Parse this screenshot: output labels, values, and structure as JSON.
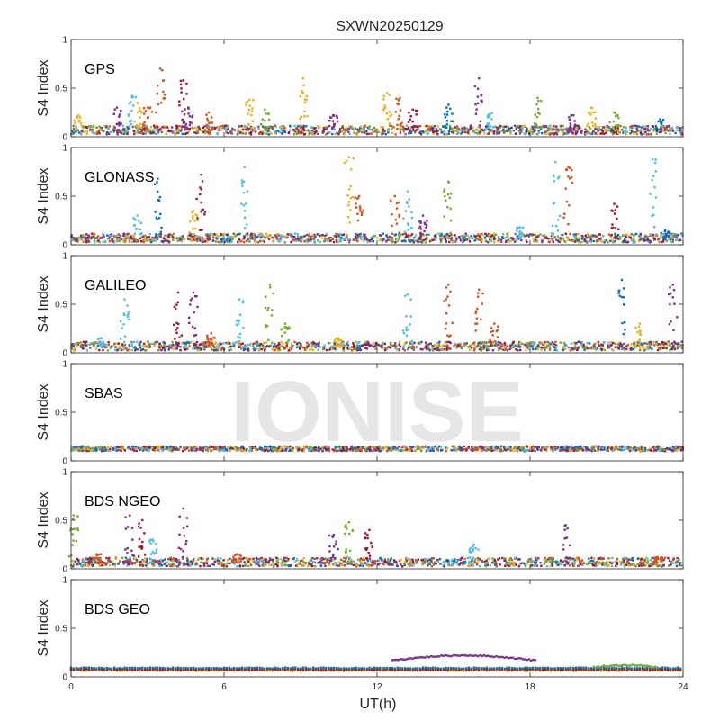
{
  "title": "SXWN20250129",
  "watermark": "IONISE",
  "xlabel": "UT(h)",
  "ylabel": "S4 Index",
  "xticks": [
    "0",
    "6",
    "12",
    "18",
    "24"
  ],
  "yticks": [
    "0",
    "0.5",
    "1"
  ],
  "colors": [
    "#0072BD",
    "#D95319",
    "#EDB120",
    "#7E2F8E",
    "#77AC30",
    "#4DBEEE",
    "#A2142F"
  ],
  "chart_data": [
    {
      "type": "scatter",
      "label": "GPS",
      "xlim": [
        0,
        24
      ],
      "ylim": [
        0,
        1
      ],
      "baseline": 0.06,
      "spikes": [
        {
          "x": 0.3,
          "y": 0.22,
          "c": 2
        },
        {
          "x": 1.8,
          "y": 0.3,
          "c": 3
        },
        {
          "x": 2.4,
          "y": 0.42,
          "c": 5
        },
        {
          "x": 2.6,
          "y": 0.35,
          "c": 2
        },
        {
          "x": 3.0,
          "y": 0.3,
          "c": 1
        },
        {
          "x": 3.5,
          "y": 0.7,
          "c": 1
        },
        {
          "x": 4.4,
          "y": 0.58,
          "c": 6
        },
        {
          "x": 4.6,
          "y": 0.3,
          "c": 3
        },
        {
          "x": 5.4,
          "y": 0.25,
          "c": 1
        },
        {
          "x": 7.0,
          "y": 0.38,
          "c": 2
        },
        {
          "x": 7.6,
          "y": 0.28,
          "c": 4
        },
        {
          "x": 9.1,
          "y": 0.6,
          "c": 2
        },
        {
          "x": 10.3,
          "y": 0.22,
          "c": 3
        },
        {
          "x": 12.4,
          "y": 0.45,
          "c": 2
        },
        {
          "x": 12.9,
          "y": 0.4,
          "c": 1
        },
        {
          "x": 13.4,
          "y": 0.28,
          "c": 6
        },
        {
          "x": 14.8,
          "y": 0.33,
          "c": 0
        },
        {
          "x": 16.0,
          "y": 0.6,
          "c": 3
        },
        {
          "x": 16.5,
          "y": 0.24,
          "c": 5
        },
        {
          "x": 18.3,
          "y": 0.4,
          "c": 4
        },
        {
          "x": 19.7,
          "y": 0.22,
          "c": 3
        },
        {
          "x": 20.4,
          "y": 0.3,
          "c": 2
        },
        {
          "x": 21.3,
          "y": 0.25,
          "c": 4
        },
        {
          "x": 23.1,
          "y": 0.18,
          "c": 0
        }
      ]
    },
    {
      "type": "scatter",
      "label": "GLONASS",
      "xlim": [
        0,
        24
      ],
      "ylim": [
        0,
        1
      ],
      "baseline": 0.06,
      "spikes": [
        {
          "x": 2.6,
          "y": 0.3,
          "c": 5
        },
        {
          "x": 3.4,
          "y": 0.68,
          "c": 0
        },
        {
          "x": 4.8,
          "y": 0.35,
          "c": 2
        },
        {
          "x": 5.1,
          "y": 0.72,
          "c": 6
        },
        {
          "x": 6.8,
          "y": 0.8,
          "c": 5
        },
        {
          "x": 10.9,
          "y": 0.9,
          "c": 2
        },
        {
          "x": 11.3,
          "y": 0.5,
          "c": 1
        },
        {
          "x": 12.7,
          "y": 0.5,
          "c": 1
        },
        {
          "x": 13.2,
          "y": 0.55,
          "c": 5
        },
        {
          "x": 13.8,
          "y": 0.3,
          "c": 3
        },
        {
          "x": 14.8,
          "y": 0.65,
          "c": 4
        },
        {
          "x": 17.6,
          "y": 0.18,
          "c": 5
        },
        {
          "x": 19.0,
          "y": 0.85,
          "c": 5
        },
        {
          "x": 19.5,
          "y": 0.8,
          "c": 1
        },
        {
          "x": 21.3,
          "y": 0.42,
          "c": 6
        },
        {
          "x": 22.8,
          "y": 0.88,
          "c": 5
        },
        {
          "x": 23.3,
          "y": 0.15,
          "c": 0
        }
      ]
    },
    {
      "type": "scatter",
      "label": "GALILEO",
      "xlim": [
        0,
        24
      ],
      "ylim": [
        0,
        1
      ],
      "baseline": 0.06,
      "spikes": [
        {
          "x": 1.2,
          "y": 0.15,
          "c": 5
        },
        {
          "x": 2.1,
          "y": 0.55,
          "c": 5
        },
        {
          "x": 4.2,
          "y": 0.62,
          "c": 6
        },
        {
          "x": 4.8,
          "y": 0.62,
          "c": 3
        },
        {
          "x": 5.5,
          "y": 0.2,
          "c": 1
        },
        {
          "x": 6.6,
          "y": 0.55,
          "c": 5
        },
        {
          "x": 7.8,
          "y": 0.7,
          "c": 4
        },
        {
          "x": 8.4,
          "y": 0.3,
          "c": 4
        },
        {
          "x": 10.5,
          "y": 0.15,
          "c": 2
        },
        {
          "x": 13.2,
          "y": 0.6,
          "c": 5
        },
        {
          "x": 14.8,
          "y": 0.7,
          "c": 1
        },
        {
          "x": 16.0,
          "y": 0.65,
          "c": 1
        },
        {
          "x": 16.6,
          "y": 0.3,
          "c": 1
        },
        {
          "x": 21.6,
          "y": 0.75,
          "c": 0
        },
        {
          "x": 22.3,
          "y": 0.3,
          "c": 2
        },
        {
          "x": 23.6,
          "y": 0.7,
          "c": 3
        }
      ]
    },
    {
      "type": "scatter",
      "label": "SBAS",
      "xlim": [
        0,
        24
      ],
      "ylim": [
        0,
        1
      ],
      "baseline": 0.12,
      "spikes": []
    },
    {
      "type": "scatter",
      "label": "BDS NGEO",
      "xlim": [
        0,
        24
      ],
      "ylim": [
        0,
        1
      ],
      "baseline": 0.06,
      "spikes": [
        {
          "x": 0.1,
          "y": 0.55,
          "c": 4
        },
        {
          "x": 1.0,
          "y": 0.15,
          "c": 1
        },
        {
          "x": 2.3,
          "y": 0.55,
          "c": 3
        },
        {
          "x": 2.8,
          "y": 0.5,
          "c": 6
        },
        {
          "x": 3.2,
          "y": 0.3,
          "c": 5
        },
        {
          "x": 4.4,
          "y": 0.62,
          "c": 3
        },
        {
          "x": 6.5,
          "y": 0.15,
          "c": 1
        },
        {
          "x": 10.3,
          "y": 0.35,
          "c": 3
        },
        {
          "x": 10.9,
          "y": 0.48,
          "c": 4
        },
        {
          "x": 11.7,
          "y": 0.4,
          "c": 6
        },
        {
          "x": 15.8,
          "y": 0.25,
          "c": 5
        },
        {
          "x": 19.4,
          "y": 0.45,
          "c": 3
        },
        {
          "x": 23.0,
          "y": 0.12,
          "c": 1
        }
      ]
    },
    {
      "type": "scatter",
      "label": "BDS GEO",
      "xlim": [
        0,
        24
      ],
      "ylim": [
        0,
        1
      ],
      "baseline": 0.07,
      "arcs": [
        {
          "x0": 12.6,
          "x1": 18.2,
          "y0": 0.17,
          "ypeak": 0.22,
          "c": 3
        },
        {
          "x0": 20.5,
          "x1": 23.0,
          "y0": 0.1,
          "ypeak": 0.12,
          "c": 4
        }
      ],
      "spikes": []
    }
  ]
}
